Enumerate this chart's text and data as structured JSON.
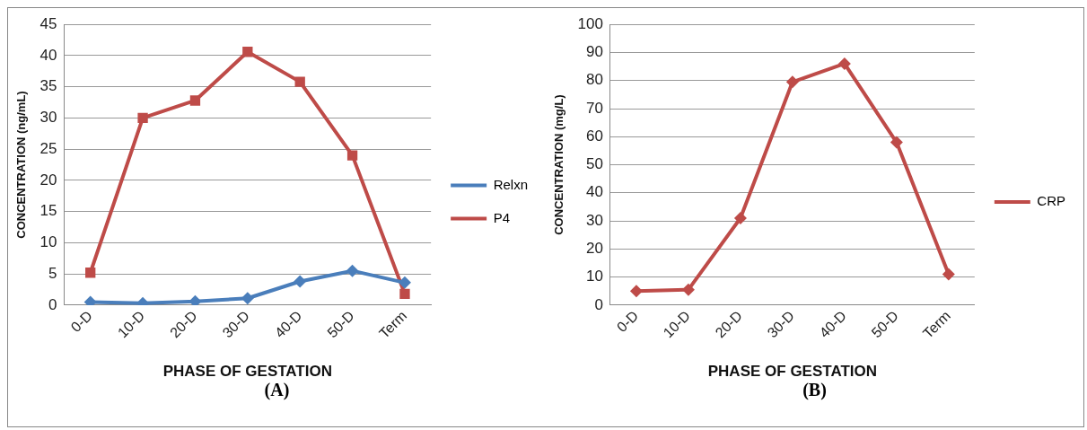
{
  "chart_data": [
    {
      "type": "line",
      "xlabel": "PHASE OF GESTATION",
      "ylabel": "CONCENTRATION (ng/mL)",
      "annotations": [
        "(A)"
      ],
      "categories": [
        "0-D",
        "10-D",
        "20-D",
        "30-D",
        "40-D",
        "50-D",
        "Term"
      ],
      "series": [
        {
          "name": "Relxn",
          "color": "#4a7ebb",
          "marker": "diamond",
          "values": [
            0.5,
            0.3,
            0.6,
            1.1,
            3.8,
            5.5,
            3.6
          ]
        },
        {
          "name": "P4",
          "color": "#be4b48",
          "marker": "square",
          "values": [
            5.2,
            30,
            32.8,
            40.6,
            35.8,
            24,
            1.8
          ]
        }
      ],
      "ylim": [
        0,
        45
      ],
      "yticks": [
        0,
        5,
        10,
        15,
        20,
        25,
        30,
        35,
        40,
        45
      ],
      "grid": "y",
      "legend": "right"
    },
    {
      "type": "line",
      "xlabel": "PHASE OF GESTATION",
      "ylabel": "CONCENTRATION (mg/L)",
      "annotations": [
        "(B)"
      ],
      "categories": [
        "0-D",
        "10-D",
        "20-D",
        "30-D",
        "40-D",
        "50-D",
        "Term"
      ],
      "series": [
        {
          "name": "CRP",
          "color": "#be4b48",
          "marker": "diamond",
          "values": [
            5,
            5.5,
            31,
            79.5,
            86,
            58,
            11
          ]
        }
      ],
      "ylim": [
        0,
        100
      ],
      "yticks": [
        0,
        10,
        20,
        30,
        40,
        50,
        60,
        70,
        80,
        90,
        100
      ],
      "grid": "y",
      "legend": "right"
    }
  ]
}
